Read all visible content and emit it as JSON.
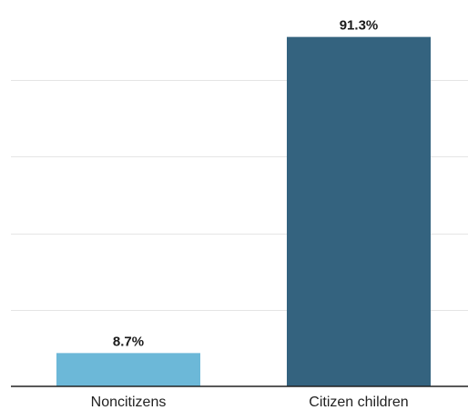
{
  "chart_data": {
    "type": "bar",
    "title": "",
    "xlabel": "",
    "ylabel": "",
    "categories": [
      "Noncitizens",
      "Citizen children"
    ],
    "values": [
      8.7,
      91.3
    ],
    "value_labels": [
      "8.7%",
      "91.3%"
    ],
    "colors": [
      "#6cb8d8",
      "#34637f"
    ],
    "ylim": [
      0,
      100
    ],
    "grid": true,
    "legend": "none"
  }
}
